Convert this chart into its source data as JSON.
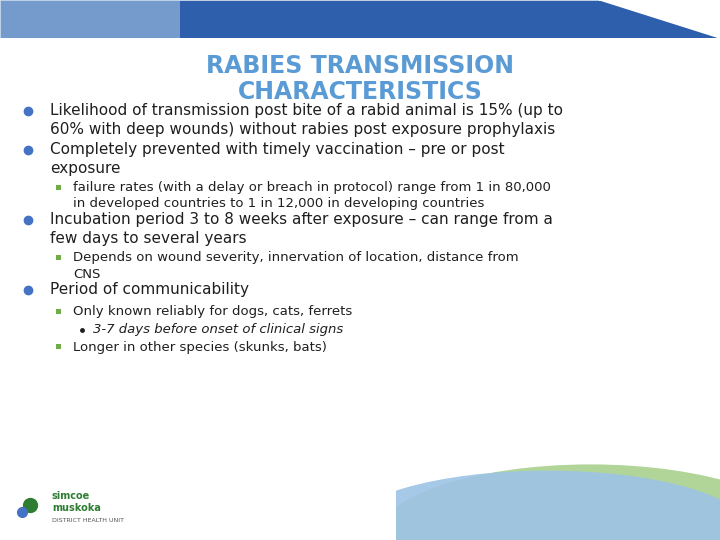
{
  "title_line1": "RABIES TRANSMISSION",
  "title_line2": "CHARACTERISTICS",
  "title_color": "#5B9BD5",
  "background_color": "#FFFFFF",
  "bullet_color": "#4472C4",
  "sub_bullet_color": "#70AD47",
  "text_color": "#1F1F1F",
  "title_fontsize": 17,
  "main_bullet_fontsize": 11,
  "sub_bullet_fontsize": 9.5,
  "sub_sub_bullet_fontsize": 9.5,
  "bullets": [
    {
      "level": 0,
      "text": "Likelihood of transmission post bite of a rabid animal is 15% (up to\n60% with deep wounds) without rabies post exposure prophylaxis"
    },
    {
      "level": 0,
      "text": "Completely prevented with timely vaccination – pre or post\nexposure"
    },
    {
      "level": 1,
      "text": "failure rates (with a delay or breach in protocol) range from 1 in 80,000\nin developed countries to 1 in 12,000 in developing countries"
    },
    {
      "level": 0,
      "text": "Incubation period 3 to 8 weeks after exposure – can range from a\nfew days to several years"
    },
    {
      "level": 1,
      "text": "Depends on wound severity, innervation of location, distance from\nCNS"
    },
    {
      "level": 0,
      "text": "Period of communicability"
    },
    {
      "level": 1,
      "text": "Only known reliably for dogs, cats, ferrets"
    },
    {
      "level": 2,
      "text": "3-7 days before onset of clinical signs",
      "italic": true
    },
    {
      "level": 1,
      "text": "Longer in other species (skunks, bats)"
    }
  ],
  "top_band_color": "#2E5FAC",
  "top_band_light": "#BDD7EE",
  "bottom_blue": "#9DC3E6",
  "bottom_green": "#A9D18E",
  "logo_text_color": "#404040"
}
